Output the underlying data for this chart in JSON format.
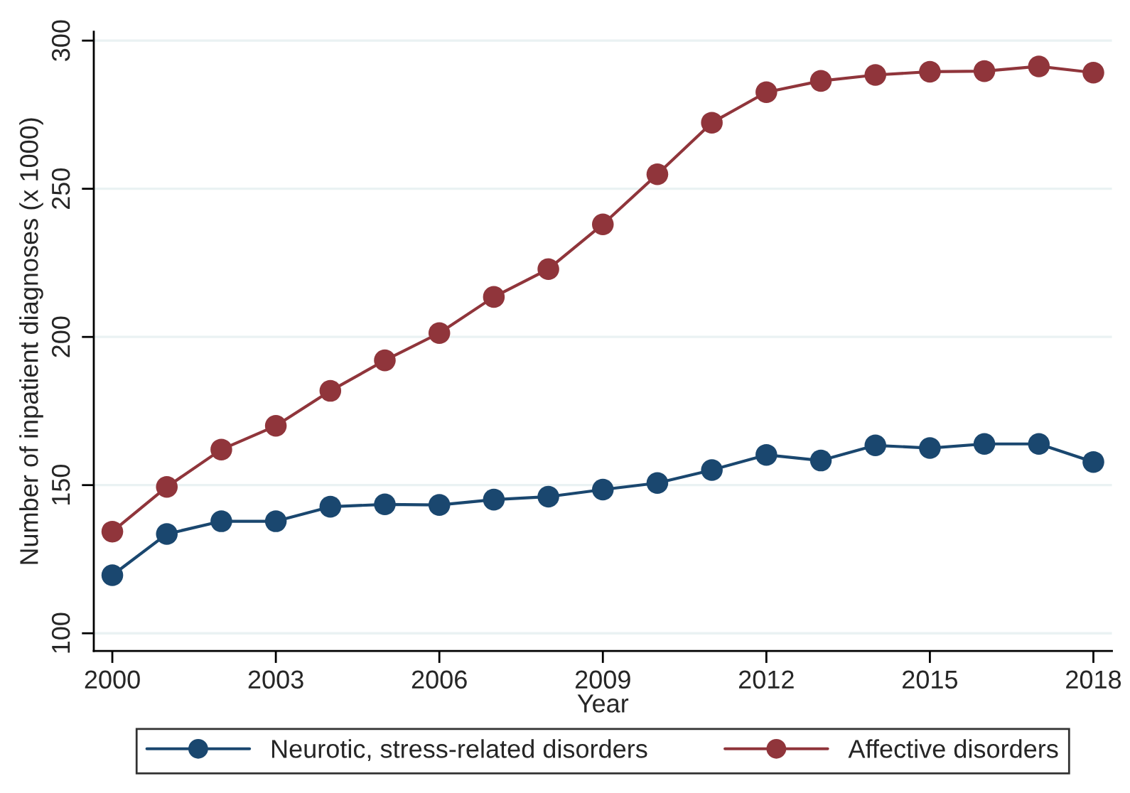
{
  "chart_data": {
    "type": "line",
    "xlabel": "Year",
    "ylabel": "Number of inpatient diagnoses (x 1000)",
    "x": [
      2000,
      2001,
      2002,
      2003,
      2004,
      2005,
      2006,
      2007,
      2008,
      2009,
      2010,
      2011,
      2012,
      2013,
      2014,
      2015,
      2016,
      2017,
      2018
    ],
    "series": [
      {
        "name": "Neurotic, stress-related disorders",
        "color": "#1a476f",
        "values": [
          119.6,
          133.5,
          137.8,
          137.8,
          142.7,
          143.5,
          143.3,
          145.1,
          146.1,
          148.5,
          150.7,
          155.1,
          160.2,
          158.3,
          163.4,
          162.5,
          163.9,
          163.9,
          157.8
        ]
      },
      {
        "name": "Affective disorders",
        "color": "#90353b",
        "values": [
          134.3,
          149.4,
          162,
          170,
          181.8,
          192.1,
          201.3,
          213.5,
          222.9,
          238,
          254.9,
          272.3,
          282.6,
          286.4,
          288.4,
          289.5,
          289.7,
          291.3,
          289.2
        ]
      }
    ],
    "xlim": [
      1999.66,
      2018.34
    ],
    "xticks": [
      2000,
      2003,
      2006,
      2009,
      2012,
      2015,
      2018
    ],
    "ylim": [
      94,
      303
    ],
    "yticks": [
      100,
      150,
      200,
      250,
      300
    ],
    "grid": "y",
    "legend": "bottom",
    "marker": "circle",
    "line_style": "solid"
  }
}
